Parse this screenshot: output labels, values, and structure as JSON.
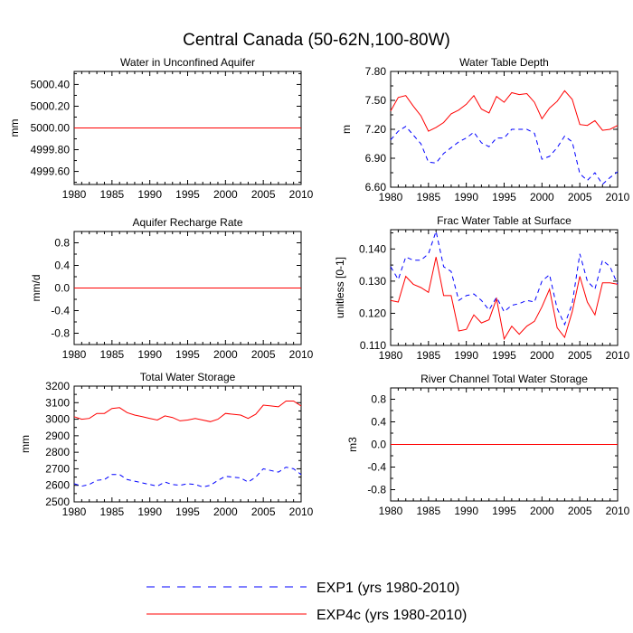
{
  "figure": {
    "title": "Central Canada (50-62N,100-80W)",
    "legend": [
      {
        "label": "EXP1 (yrs 1980-2010)",
        "color": "#0000ff",
        "dash": true
      },
      {
        "label": "EXP4c (yrs 1980-2010)",
        "color": "#ff0000",
        "dash": false
      }
    ]
  },
  "chart_data": [
    {
      "type": "line",
      "title": "Water in Unconfined Aquifer",
      "xlabel": "",
      "ylabel": "mm",
      "xlim": [
        1980,
        2010
      ],
      "ylim": [
        4999.48,
        5000.52
      ],
      "xticks": [
        1980,
        1985,
        1990,
        1995,
        2000,
        2005,
        2010
      ],
      "yticks": [
        4999.6,
        4999.8,
        5000.0,
        5000.2,
        5000.4
      ],
      "yticklabels": [
        "4999.60",
        "4999.80",
        "5000.00",
        "5000.20",
        "5000.40"
      ],
      "x": [
        1980,
        2010
      ],
      "series": [
        {
          "name": "EXP1 (yrs 1980-2010)",
          "values": [
            5000.0,
            5000.0
          ]
        },
        {
          "name": "EXP4c (yrs 1980-2010)",
          "values": [
            5000.0,
            5000.0
          ]
        }
      ]
    },
    {
      "type": "line",
      "title": "Water Table Depth",
      "xlabel": "",
      "ylabel": "m",
      "xlim": [
        1980,
        2010
      ],
      "ylim": [
        6.6,
        7.8
      ],
      "xticks": [
        1980,
        1985,
        1990,
        1995,
        2000,
        2005,
        2010
      ],
      "yticks": [
        6.6,
        6.9,
        7.2,
        7.5,
        7.8
      ],
      "yticklabels": [
        "6.60",
        "6.90",
        "7.20",
        "7.50",
        "7.80"
      ],
      "x": [
        1980,
        1981,
        1982,
        1983,
        1984,
        1985,
        1986,
        1987,
        1988,
        1989,
        1990,
        1991,
        1992,
        1993,
        1994,
        1995,
        1996,
        1997,
        1998,
        1999,
        2000,
        2001,
        2002,
        2003,
        2004,
        2005,
        2006,
        2007,
        2008,
        2009,
        2010
      ],
      "series": [
        {
          "name": "EXP1 (yrs 1980-2010)",
          "values": [
            7.09,
            7.18,
            7.23,
            7.14,
            7.05,
            6.86,
            6.85,
            6.95,
            7.01,
            7.07,
            7.11,
            7.17,
            7.06,
            7.02,
            7.11,
            7.11,
            7.2,
            7.2,
            7.2,
            7.16,
            6.89,
            6.92,
            7.01,
            7.13,
            7.07,
            6.74,
            6.67,
            6.75,
            6.63,
            6.7,
            6.76
          ]
        },
        {
          "name": "EXP4c (yrs 1980-2010)",
          "values": [
            7.39,
            7.53,
            7.55,
            7.44,
            7.34,
            7.18,
            7.22,
            7.27,
            7.36,
            7.4,
            7.46,
            7.55,
            7.41,
            7.37,
            7.54,
            7.48,
            7.58,
            7.56,
            7.57,
            7.48,
            7.31,
            7.42,
            7.49,
            7.6,
            7.51,
            7.25,
            7.24,
            7.29,
            7.19,
            7.2,
            7.24
          ]
        }
      ]
    },
    {
      "type": "line",
      "title": "Aquifer Recharge Rate",
      "xlabel": "",
      "ylabel": "mm/d",
      "xlim": [
        1980,
        2010
      ],
      "ylim": [
        -1.0,
        1.0
      ],
      "xticks": [
        1980,
        1985,
        1990,
        1995,
        2000,
        2005,
        2010
      ],
      "yticks": [
        -0.8,
        -0.4,
        0.0,
        0.4,
        0.8
      ],
      "yticklabels": [
        "-0.8",
        "-0.4",
        "0.0",
        "0.4",
        "0.8"
      ],
      "x": [
        1980,
        2010
      ],
      "series": [
        {
          "name": "EXP1 (yrs 1980-2010)",
          "values": [
            0.0,
            0.0
          ]
        },
        {
          "name": "EXP4c (yrs 1980-2010)",
          "values": [
            0.0,
            0.0
          ]
        }
      ]
    },
    {
      "type": "line",
      "title": "Frac Water Table at Surface",
      "xlabel": "",
      "ylabel": "unitless [0-1]",
      "xlim": [
        1980,
        2010
      ],
      "ylim": [
        0.11,
        0.146
      ],
      "xticks": [
        1980,
        1985,
        1990,
        1995,
        2000,
        2005,
        2010
      ],
      "yticks": [
        0.11,
        0.12,
        0.13,
        0.14
      ],
      "yticklabels": [
        "0.110",
        "0.120",
        "0.130",
        "0.140"
      ],
      "x": [
        1980,
        1981,
        1982,
        1983,
        1984,
        1985,
        1986,
        1987,
        1988,
        1989,
        1990,
        1991,
        1992,
        1993,
        1994,
        1995,
        1996,
        1997,
        1998,
        1999,
        2000,
        2001,
        2002,
        2003,
        2004,
        2005,
        2006,
        2007,
        2008,
        2009,
        2010
      ],
      "series": [
        {
          "name": "EXP1 (yrs 1980-2010)",
          "values": [
            0.1345,
            0.1305,
            0.1375,
            0.1365,
            0.1365,
            0.1385,
            0.1455,
            0.1345,
            0.133,
            0.124,
            0.1255,
            0.126,
            0.124,
            0.121,
            0.125,
            0.1205,
            0.1225,
            0.123,
            0.124,
            0.1235,
            0.13,
            0.132,
            0.1215,
            0.1165,
            0.123,
            0.1385,
            0.13,
            0.1275,
            0.1365,
            0.1345,
            0.129
          ]
        },
        {
          "name": "EXP4c (yrs 1980-2010)",
          "values": [
            0.124,
            0.1235,
            0.1315,
            0.129,
            0.128,
            0.1265,
            0.1375,
            0.1255,
            0.1255,
            0.1145,
            0.115,
            0.1195,
            0.117,
            0.118,
            0.1245,
            0.112,
            0.116,
            0.1135,
            0.116,
            0.1175,
            0.122,
            0.1275,
            0.1155,
            0.1125,
            0.1205,
            0.1315,
            0.1235,
            0.1195,
            0.1295,
            0.1295,
            0.129
          ]
        }
      ]
    },
    {
      "type": "line",
      "title": "Total Water Storage",
      "xlabel": "",
      "ylabel": "mm",
      "xlim": [
        1980,
        2010
      ],
      "ylim": [
        2500,
        3200
      ],
      "xticks": [
        1980,
        1985,
        1990,
        1995,
        2000,
        2005,
        2010
      ],
      "yticks": [
        2500,
        2600,
        2700,
        2800,
        2900,
        3000,
        3100,
        3200
      ],
      "yticklabels": [
        "2500",
        "2600",
        "2700",
        "2800",
        "2900",
        "3000",
        "3100",
        "3200"
      ],
      "x": [
        1980,
        1981,
        1982,
        1983,
        1984,
        1985,
        1986,
        1987,
        1988,
        1989,
        1990,
        1991,
        1992,
        1993,
        1994,
        1995,
        1996,
        1997,
        1998,
        1999,
        2000,
        2001,
        2002,
        2003,
        2004,
        2005,
        2006,
        2007,
        2008,
        2009,
        2010
      ],
      "series": [
        {
          "name": "EXP1 (yrs 1980-2010)",
          "values": [
            2610,
            2595,
            2605,
            2630,
            2635,
            2665,
            2665,
            2635,
            2625,
            2615,
            2605,
            2595,
            2620,
            2605,
            2600,
            2610,
            2605,
            2590,
            2600,
            2630,
            2655,
            2650,
            2645,
            2620,
            2650,
            2700,
            2690,
            2680,
            2710,
            2700,
            2665
          ]
        },
        {
          "name": "EXP4c (yrs 1980-2010)",
          "values": [
            3015,
            3000,
            3005,
            3035,
            3035,
            3065,
            3070,
            3040,
            3025,
            3015,
            3005,
            2995,
            3020,
            3010,
            2990,
            2995,
            3005,
            2995,
            2985,
            3000,
            3035,
            3030,
            3025,
            3005,
            3030,
            3085,
            3080,
            3075,
            3110,
            3110,
            3080
          ]
        }
      ]
    },
    {
      "type": "line",
      "title": "River Channel Total Water Storage",
      "xlabel": "",
      "ylabel": "m3",
      "xlim": [
        1980,
        2010
      ],
      "ylim": [
        -1.0,
        1.0
      ],
      "xticks": [
        1980,
        1985,
        1990,
        1995,
        2000,
        2005,
        2010
      ],
      "yticks": [
        -0.8,
        -0.4,
        0.0,
        0.4,
        0.8
      ],
      "yticklabels": [
        "-0.8",
        "-0.4",
        "0.0",
        "0.4",
        "0.8"
      ],
      "x": [
        1980,
        2010
      ],
      "series": [
        {
          "name": "EXP1 (yrs 1980-2010)",
          "values": [
            0.0,
            0.0
          ]
        },
        {
          "name": "EXP4c (yrs 1980-2010)",
          "values": [
            0.0,
            0.0
          ]
        }
      ]
    }
  ]
}
